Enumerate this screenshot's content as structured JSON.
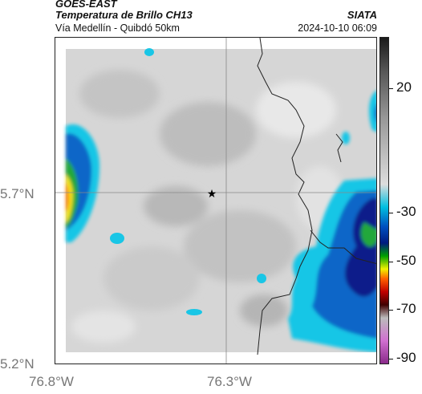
{
  "header": {
    "title": "GOES-EAST",
    "subtitle": "Temperatura de Brillo CH13",
    "location": "Vía Medellín - Quibdó 50km",
    "brand": "SIATA",
    "datetime": "2024-10-10 06:09"
  },
  "axes": {
    "y_ticks": [
      "5.7°N",
      "5.2°N"
    ],
    "x_ticks": [
      "76.8°W",
      "76.3°W"
    ]
  },
  "colorbar": {
    "labels": [
      "20",
      "-30",
      "-50",
      "-70",
      "-90"
    ],
    "colors": [
      "#1a1a1a",
      "#555555",
      "#999999",
      "#dddddd",
      "#00bfe0",
      "#0050c0",
      "#001a80",
      "#00a000",
      "#f0f000",
      "#ff6000",
      "#c00000",
      "#400000",
      "#bbbbbb",
      "#d070d0",
      "#8a2a8a"
    ]
  },
  "map": {
    "marker": "star-marker",
    "cloud_colors": {
      "cold_outer": "#19c6e6",
      "cold_mid": "#0a66c8",
      "cold_core": "#0a1f8a",
      "green": "#22a83a",
      "yellow": "#f2e21a",
      "orange": "#ff7a00",
      "background_gray": "#d4d4d4"
    }
  }
}
